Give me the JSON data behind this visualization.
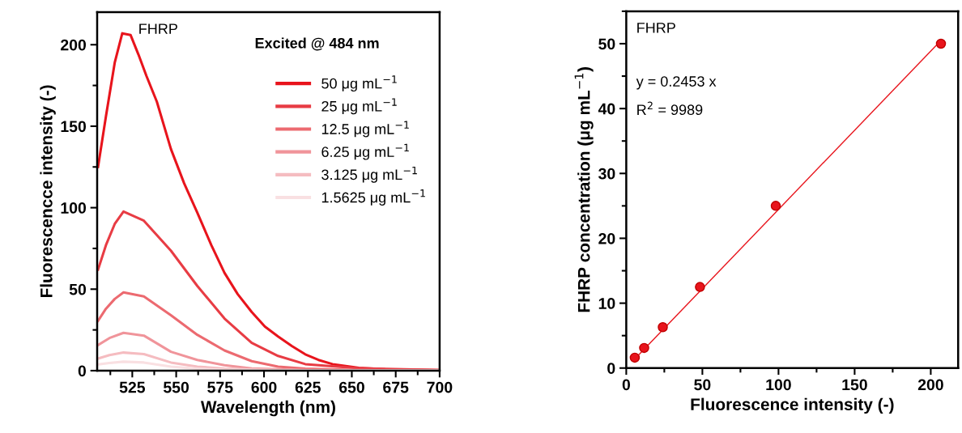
{
  "chart_data": [
    {
      "type": "line",
      "xlabel": "Wavelength (nm)",
      "ylabel": "Fluorescencce intensity (-)",
      "xlim": [
        505,
        700
      ],
      "xticks": [
        525,
        550,
        575,
        600,
        625,
        650,
        675,
        700
      ],
      "ylim": [
        0,
        220
      ],
      "yticks": [
        0,
        50,
        100,
        150,
        200
      ],
      "legend": "top right",
      "line_style": "solid",
      "grid": false,
      "annotations": [
        "FHRP",
        "Excited @ 484 nm"
      ],
      "series": [
        {
          "name": "50 μg mL$^{−1}$",
          "color": "#e8141c",
          "x": [
            505.5,
            510,
            515,
            519.3,
            524,
            528.5,
            533,
            539,
            547,
            554.5,
            562,
            570,
            577.5,
            585,
            593,
            600.5,
            608,
            616,
            623.5,
            631,
            639,
            654,
            669,
            700
          ],
          "values": [
            125,
            156,
            189,
            207,
            206,
            194,
            181,
            165,
            136,
            115,
            97,
            77,
            60,
            47,
            36,
            27,
            21,
            15,
            10,
            6.6,
            4,
            1.7,
            0.8,
            0.3
          ]
        },
        {
          "name": "25 μg mL$^{−1}$",
          "color": "#e83c44",
          "x": [
            505.5,
            510,
            515,
            520,
            531.6,
            547,
            562,
            577.5,
            593,
            608,
            623.5,
            654,
            700
          ],
          "values": [
            62,
            77,
            90,
            97.6,
            92,
            73.6,
            52,
            32,
            17,
            9,
            4,
            1.5,
            0.3
          ]
        },
        {
          "name": "12.5 μg mL$^{−1}$",
          "color": "#ec6a70",
          "x": [
            505.5,
            510,
            515,
            520,
            531.6,
            547,
            562,
            577.5,
            593,
            608,
            623.5,
            654,
            700
          ],
          "values": [
            30.6,
            38,
            44,
            48,
            45.5,
            34,
            22,
            12.4,
            5.8,
            2.5,
            1.2,
            0.4,
            0.1
          ]
        },
        {
          "name": "6.25 μg mL$^{−1}$",
          "color": "#f0949a",
          "x": [
            505.5,
            512,
            520,
            531.6,
            547,
            562,
            577.5,
            593,
            623.5,
            700
          ],
          "values": [
            15.7,
            20,
            23.2,
            21.5,
            11.6,
            6.6,
            3.3,
            1.3,
            0.4,
            0.1
          ]
        },
        {
          "name": "3.125 μg mL$^{−1}$",
          "color": "#f5bcc0",
          "x": [
            505.5,
            512,
            520,
            531.6,
            547,
            562,
            577.5,
            608,
            700
          ],
          "values": [
            7.4,
            9.5,
            11.1,
            10.2,
            5,
            2.5,
            1.2,
            0.4,
            0.1
          ]
        },
        {
          "name": "1.5625 μg mL$^{−1}$",
          "color": "#f9e0e2",
          "x": [
            505.5,
            512,
            520,
            531.6,
            547,
            562,
            577.5,
            608,
            700
          ],
          "values": [
            3.8,
            4.7,
            5.5,
            5,
            2.5,
            1.2,
            0.6,
            0.2,
            0
          ]
        }
      ]
    },
    {
      "type": "scatter",
      "xlabel": "Fluorescence intensity (-)",
      "ylabel": "FHRP concentration (μg mL$^{−1}$)",
      "xlim": [
        0,
        218
      ],
      "xticks": [
        0,
        50,
        100,
        150,
        200
      ],
      "ylim": [
        0,
        55
      ],
      "yticks": [
        0,
        10,
        20,
        30,
        40,
        50
      ],
      "grid": false,
      "legend": false,
      "annotations": [
        "FHRP",
        "y = 0.2453 x",
        "R$^{2}$ = 9989"
      ],
      "series": [
        {
          "color": "#e8141c",
          "marker": "circle",
          "x": [
            5.6,
            11.75,
            24,
            48.4,
            98.2,
            206.7
          ],
          "values": [
            1.6,
            3.1,
            6.3,
            12.5,
            25,
            50
          ]
        },
        {
          "type": "line",
          "color": "#e8141c",
          "x": [
            5.6,
            206.7
          ],
          "values": [
            1.4,
            50.5
          ]
        }
      ]
    }
  ]
}
